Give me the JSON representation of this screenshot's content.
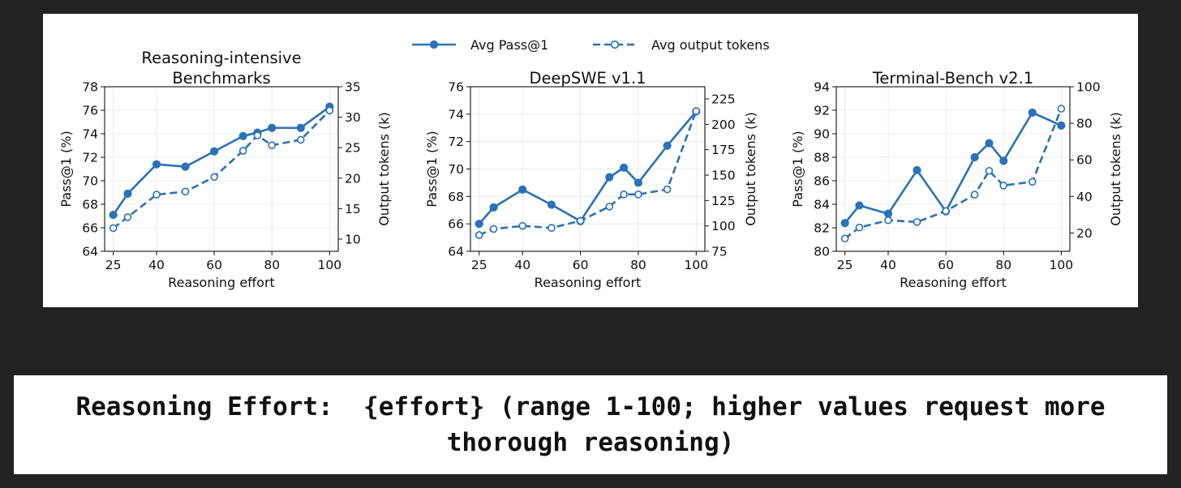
{
  "figure": {
    "legend": {
      "entries": [
        {
          "label": "Avg Pass@1",
          "style": "solid",
          "marker": "filled-circle"
        },
        {
          "label": "Avg output tokens",
          "style": "dashed",
          "marker": "open-circle"
        }
      ],
      "placement": "top-center"
    },
    "series_color": "#2a72b8"
  },
  "chart_data": [
    {
      "type": "line",
      "title": "Reasoning-intensive Benchmarks",
      "title_lines": [
        "Reasoning-intensive",
        "Benchmarks"
      ],
      "xlabel": "Reasoning effort",
      "ylabel": "Pass@1 (%)",
      "y2label": "Output tokens (k)",
      "x": [
        25,
        30,
        40,
        50,
        60,
        70,
        75,
        80,
        90,
        100
      ],
      "xticks": [
        25,
        40,
        60,
        80,
        100
      ],
      "xlim": [
        22,
        103
      ],
      "ylim": [
        64,
        78
      ],
      "yticks": [
        64,
        66,
        68,
        70,
        72,
        74,
        76,
        78
      ],
      "y2lim": [
        8,
        35
      ],
      "y2ticks": [
        10,
        15,
        20,
        25,
        30,
        35
      ],
      "grid": true,
      "series": [
        {
          "name": "Avg Pass@1",
          "axis": "left",
          "values": [
            67.1,
            68.9,
            71.4,
            71.2,
            72.5,
            73.8,
            74.1,
            74.5,
            74.5,
            76.3
          ]
        },
        {
          "name": "Avg output tokens",
          "axis": "right",
          "values": [
            11.8,
            13.6,
            17.3,
            17.8,
            20.2,
            24.5,
            27.0,
            25.4,
            26.3,
            31.1
          ]
        }
      ]
    },
    {
      "type": "line",
      "title": "DeepSWE v1.1",
      "title_lines": [
        "DeepSWE v1.1"
      ],
      "xlabel": "Reasoning effort",
      "ylabel": "Pass@1 (%)",
      "y2label": "Output tokens (k)",
      "x": [
        25,
        30,
        40,
        50,
        60,
        70,
        75,
        80,
        90,
        100
      ],
      "xticks": [
        25,
        40,
        60,
        80,
        100
      ],
      "xlim": [
        22,
        103
      ],
      "ylim": [
        64,
        76
      ],
      "yticks": [
        64,
        66,
        68,
        70,
        72,
        74,
        76
      ],
      "y2lim": [
        75,
        237
      ],
      "y2ticks": [
        75,
        100,
        125,
        150,
        175,
        200,
        225
      ],
      "grid": true,
      "series": [
        {
          "name": "Avg Pass@1",
          "axis": "left",
          "values": [
            66.0,
            67.2,
            68.5,
            67.4,
            66.2,
            69.4,
            70.1,
            69.0,
            71.7,
            74.2
          ]
        },
        {
          "name": "Avg output tokens",
          "axis": "right",
          "values": [
            91,
            97,
            100,
            98,
            105,
            119,
            131,
            131,
            136,
            213
          ]
        }
      ]
    },
    {
      "type": "line",
      "title": "Terminal-Bench v2.1",
      "title_lines": [
        "Terminal-Bench v2.1"
      ],
      "xlabel": "Reasoning effort",
      "ylabel": "Pass@1 (%)",
      "y2label": "Output tokens (k)",
      "x": [
        25,
        30,
        40,
        50,
        60,
        70,
        75,
        80,
        90,
        100
      ],
      "xticks": [
        25,
        40,
        60,
        80,
        100
      ],
      "xlim": [
        22,
        103
      ],
      "ylim": [
        80,
        94
      ],
      "yticks": [
        80,
        82,
        84,
        86,
        88,
        90,
        92,
        94
      ],
      "y2lim": [
        10,
        100
      ],
      "y2ticks": [
        20,
        40,
        60,
        80,
        100
      ],
      "grid": true,
      "series": [
        {
          "name": "Avg Pass@1",
          "axis": "left",
          "values": [
            82.4,
            83.9,
            83.2,
            86.9,
            83.4,
            88.0,
            89.2,
            87.7,
            91.8,
            90.7
          ]
        },
        {
          "name": "Avg output tokens",
          "axis": "right",
          "values": [
            17,
            23,
            27,
            26,
            32,
            41,
            54,
            46,
            48,
            88
          ]
        }
      ]
    }
  ],
  "caption": {
    "text": "Reasoning Effort:  {effort} (range 1-100; higher values request more thorough reasoning)"
  }
}
